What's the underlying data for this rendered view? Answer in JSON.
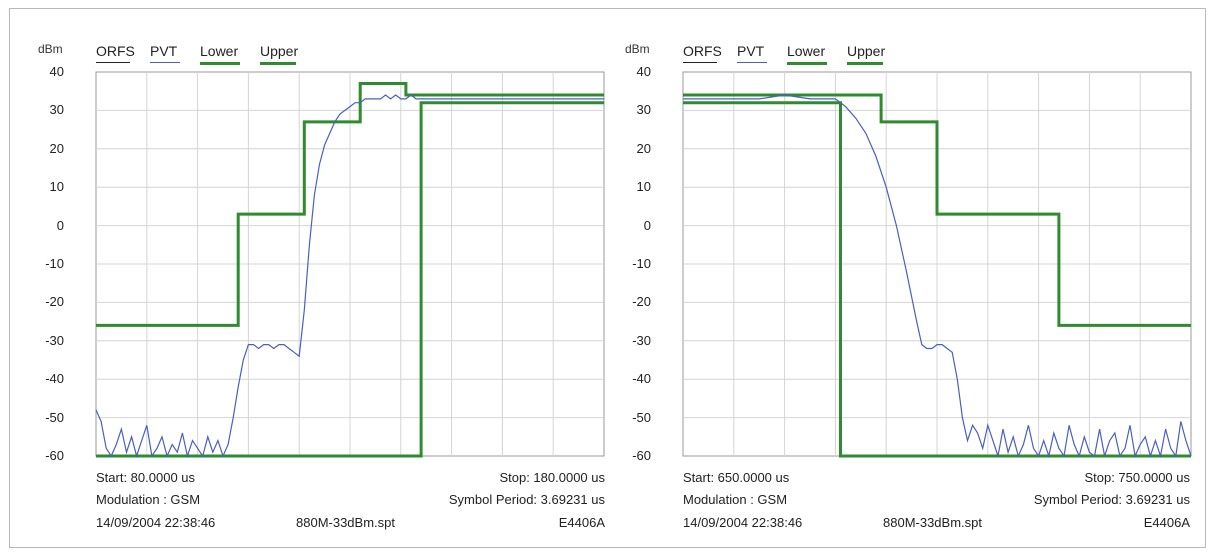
{
  "panels": [
    {
      "y_unit": "dBm",
      "legend": [
        {
          "label": "ORFS",
          "color": "#222222"
        },
        {
          "label": "PVT",
          "color": "#4a5fc1"
        },
        {
          "label": "Lower",
          "color": "#2e8b2e"
        },
        {
          "label": "Upper",
          "color": "#2e8b2e"
        }
      ],
      "info": {
        "start": "Start: 80.0000 us",
        "stop": "Stop: 180.0000 us",
        "modulation": "Modulation : GSM",
        "symbol_period": "Symbol Period: 3.69231 us",
        "timestamp": "14/09/2004 22:38:46",
        "file": "880M-33dBm.spt",
        "instrument": "E4406A"
      }
    },
    {
      "y_unit": "dBm",
      "legend": [
        {
          "label": "ORFS",
          "color": "#222222"
        },
        {
          "label": "PVT",
          "color": "#4a5fc1"
        },
        {
          "label": "Lower",
          "color": "#2e8b2e"
        },
        {
          "label": "Upper",
          "color": "#2e8b2e"
        }
      ],
      "info": {
        "start": "Start: 650.0000 us",
        "stop": "Stop: 750.0000 us",
        "modulation": "Modulation : GSM",
        "symbol_period": "Symbol Period: 3.69231 us",
        "timestamp": "14/09/2004 22:38:46",
        "file": "880M-33dBm.spt",
        "instrument": "E4406A"
      }
    }
  ],
  "chart_data": [
    {
      "type": "line",
      "xlim": [
        80,
        180
      ],
      "ylim": [
        -60,
        40
      ],
      "y_ticks": [
        "40",
        "30",
        "20",
        "10",
        "0",
        "-10",
        "-20",
        "-30",
        "-40",
        "-50",
        "-60"
      ],
      "grid": true,
      "series": [
        {
          "name": "Upper",
          "color": "#2e8b2e",
          "x": [
            80,
            108,
            108,
            121,
            121,
            132,
            132,
            141,
            141,
            180
          ],
          "y": [
            -26,
            -26,
            3,
            3,
            27,
            27,
            37,
            37,
            34,
            34
          ]
        },
        {
          "name": "Lower",
          "color": "#2e8b2e",
          "x": [
            80,
            144,
            144,
            180
          ],
          "y": [
            -60,
            -60,
            32,
            32
          ]
        },
        {
          "name": "PVT",
          "color": "#4a5fc1",
          "x": [
            80,
            81,
            82,
            83,
            84,
            85,
            86,
            87,
            88,
            89,
            90,
            91,
            92,
            93,
            94,
            95,
            96,
            97,
            98,
            99,
            100,
            101,
            102,
            103,
            104,
            105,
            106,
            107,
            108,
            109,
            110,
            111,
            112,
            113,
            114,
            115,
            116,
            117,
            118,
            119,
            120,
            121,
            122,
            123,
            124,
            125,
            126,
            127,
            128,
            129,
            130,
            131,
            132,
            133,
            134,
            135,
            136,
            137,
            138,
            139,
            140,
            141,
            142,
            143,
            144,
            145,
            150,
            155,
            160,
            165,
            170,
            175,
            180
          ],
          "y": [
            -48,
            -51,
            -58,
            -60,
            -57,
            -53,
            -59,
            -55,
            -60,
            -56,
            -52,
            -60,
            -58,
            -55,
            -60,
            -57,
            -59,
            -54,
            -60,
            -56,
            -58,
            -60,
            -55,
            -59,
            -56,
            -60,
            -57,
            -50,
            -42,
            -35,
            -31,
            -31,
            -32,
            -31,
            -31,
            -32,
            -31,
            -31,
            -32,
            -33,
            -34,
            -22,
            -5,
            8,
            16,
            21,
            24,
            27,
            29,
            30,
            31,
            32,
            32,
            33,
            33,
            33,
            33,
            34,
            33,
            34,
            33,
            33,
            34,
            33,
            33,
            33,
            33,
            33,
            33,
            33,
            33,
            33,
            33
          ]
        }
      ]
    },
    {
      "type": "line",
      "xlim": [
        650,
        750
      ],
      "ylim": [
        -60,
        40
      ],
      "y_ticks": [
        "40",
        "30",
        "20",
        "10",
        "0",
        "-10",
        "-20",
        "-30",
        "-40",
        "-50",
        "-60"
      ],
      "grid": true,
      "series": [
        {
          "name": "Upper",
          "color": "#2e8b2e",
          "x": [
            650,
            689,
            689,
            700,
            700,
            711,
            711,
            724,
            724,
            750
          ],
          "y": [
            34,
            34,
            27,
            27,
            3,
            3,
            3,
            3,
            -26,
            -26
          ]
        },
        {
          "name": "Lower",
          "color": "#2e8b2e",
          "x": [
            650,
            681,
            681,
            750
          ],
          "y": [
            32,
            32,
            -60,
            -60
          ]
        },
        {
          "name": "PVT",
          "color": "#4a5fc1",
          "x": [
            650,
            655,
            660,
            665,
            670,
            675,
            680,
            682,
            684,
            686,
            688,
            690,
            692,
            694,
            696,
            697,
            698,
            699,
            700,
            701,
            702,
            703,
            704,
            705,
            706,
            707,
            708,
            709,
            710,
            711,
            712,
            713,
            714,
            715,
            716,
            717,
            718,
            719,
            720,
            721,
            722,
            723,
            724,
            725,
            726,
            727,
            728,
            729,
            730,
            731,
            732,
            733,
            734,
            735,
            736,
            737,
            738,
            739,
            740,
            741,
            742,
            743,
            744,
            745,
            746,
            747,
            748,
            749,
            750
          ],
          "y": [
            33,
            33,
            33,
            33,
            34,
            33,
            33,
            31,
            28,
            24,
            18,
            10,
            0,
            -12,
            -25,
            -31,
            -32,
            -32,
            -31,
            -31,
            -32,
            -33,
            -40,
            -50,
            -56,
            -52,
            -54,
            -58,
            -52,
            -56,
            -60,
            -53,
            -59,
            -55,
            -60,
            -57,
            -52,
            -58,
            -60,
            -56,
            -60,
            -54,
            -58,
            -60,
            -52,
            -57,
            -60,
            -55,
            -59,
            -60,
            -53,
            -60,
            -56,
            -54,
            -60,
            -58,
            -52,
            -60,
            -57,
            -55,
            -60,
            -56,
            -60,
            -53,
            -58,
            -60,
            -51,
            -56,
            -60
          ]
        }
      ]
    }
  ]
}
